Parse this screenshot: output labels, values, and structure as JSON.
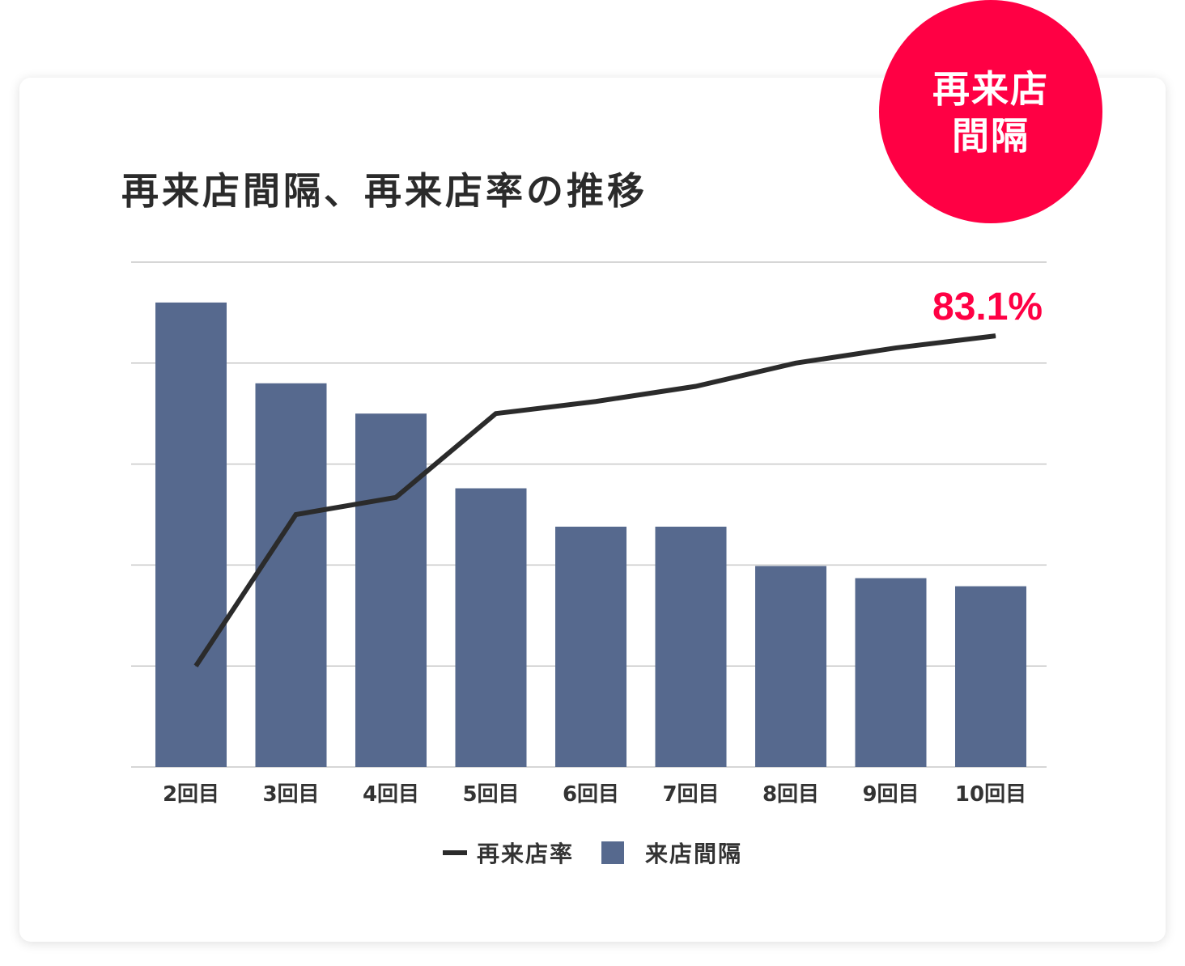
{
  "colors": {
    "bar": "#56698e",
    "line": "#2b2b2b",
    "accent": "#ff0044",
    "grid": "#c8c8c8"
  },
  "badge": {
    "line1": "再来店",
    "line2": "間隔"
  },
  "chart_data": {
    "type": "bar",
    "title": "再来店間隔、再来店率の推移",
    "categories": [
      "2回目",
      "3回目",
      "4回目",
      "5回目",
      "6回目",
      "7回目",
      "8回目",
      "9回目",
      "10回目"
    ],
    "series": [
      {
        "name": "来店間隔",
        "type": "bar",
        "values": [
          4.6,
          3.8,
          3.5,
          2.76,
          2.38,
          2.38,
          1.99,
          1.87,
          1.79
        ]
      },
      {
        "name": "再来店率",
        "type": "line",
        "values": [
          1.0,
          2.5,
          2.67,
          3.5,
          3.62,
          3.77,
          4.0,
          4.15,
          4.27
        ]
      }
    ],
    "ylim": [
      0,
      5
    ],
    "grid": true,
    "annotation": {
      "text": "83.1%",
      "series": "再来店率",
      "category": "10回目"
    },
    "legend": {
      "position": "bottom",
      "entries": [
        "再来店率",
        "来店間隔"
      ]
    }
  }
}
